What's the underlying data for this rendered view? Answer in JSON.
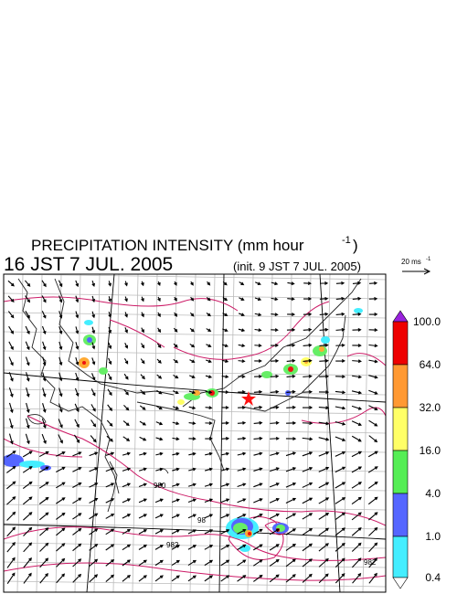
{
  "title": {
    "main": "PRECIPITATION INTENSITY (mm hour",
    "exponent": "-1",
    "close": ")"
  },
  "valid_time": "16 JST 7 JUL. 2005",
  "init_time": "(init. 9 JST 7 JUL. 2005)",
  "reference_arrow": {
    "label": "20 ms",
    "exponent": "-1"
  },
  "colorbar": {
    "labels": [
      "100.0",
      "64.0",
      "32.0",
      "16.0",
      "4.0",
      "1.0",
      "0.4"
    ]
  },
  "contour_labels": [
    "980",
    "98",
    "982",
    "982"
  ]
}
